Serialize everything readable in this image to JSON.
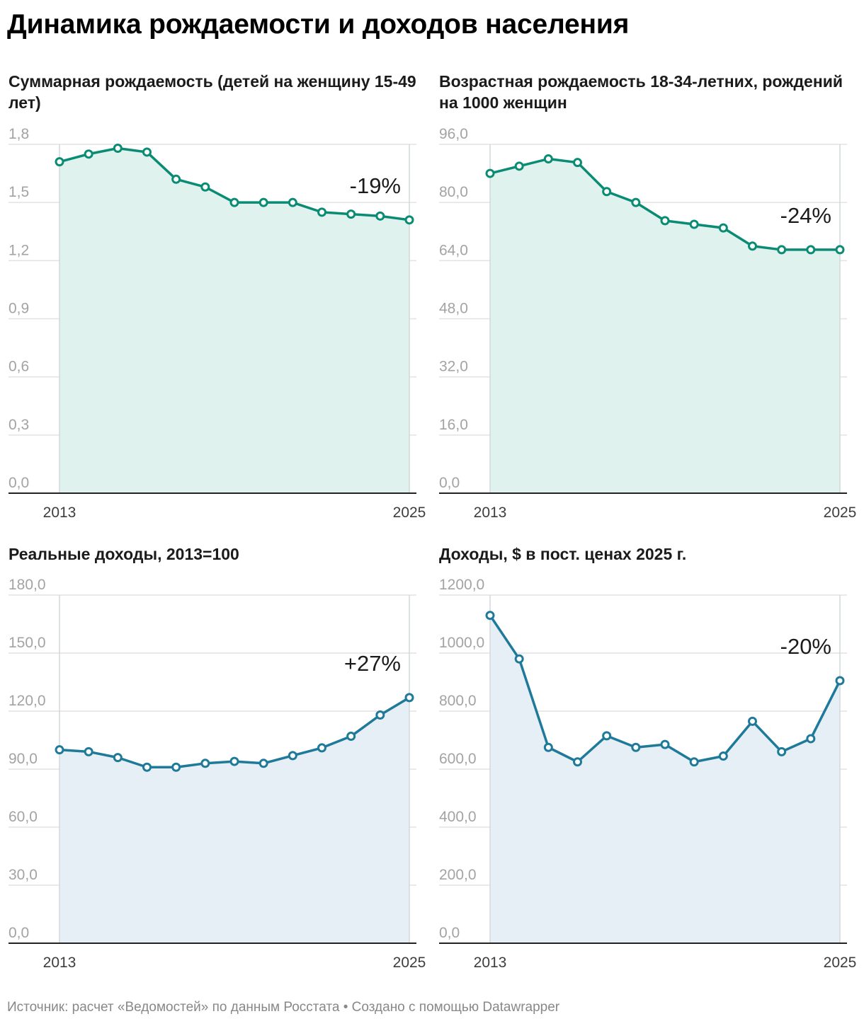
{
  "title": "Динамика рождаемости и доходов населения",
  "footer": "Источник: расчет «Ведомостей» по данным Росстата • Создано с помощью Datawrapper",
  "chart_data": [
    {
      "type": "area",
      "title": "Суммарная рождаемость (детей на женщину 15-49 лет)",
      "x": [
        2013,
        2014,
        2015,
        2016,
        2017,
        2018,
        2019,
        2020,
        2021,
        2022,
        2023,
        2024,
        2025
      ],
      "x_tick_labels": [
        "2013",
        "2025"
      ],
      "y_ticks": [
        "1,8",
        "1,5",
        "1,2",
        "0,9",
        "0,6",
        "0,3",
        "0,0"
      ],
      "ylim": [
        0,
        1.8
      ],
      "values": [
        1.71,
        1.75,
        1.78,
        1.76,
        1.62,
        1.58,
        1.5,
        1.5,
        1.5,
        1.45,
        1.44,
        1.43,
        1.41
      ],
      "annotation": "-19%",
      "color": "#0a8c74",
      "fill": "#e0f2ee"
    },
    {
      "type": "area",
      "title": "Возрастная рождаемость 18-34-летних, рождений на 1000 женщин",
      "x": [
        2013,
        2014,
        2015,
        2016,
        2017,
        2018,
        2019,
        2020,
        2021,
        2022,
        2023,
        2024,
        2025
      ],
      "x_tick_labels": [
        "2013",
        "2025"
      ],
      "y_ticks": [
        "96,0",
        "80,0",
        "64,0",
        "48,0",
        "32,0",
        "16,0",
        "0,0"
      ],
      "ylim": [
        0,
        96
      ],
      "values": [
        88,
        90,
        92,
        91,
        83,
        80,
        75,
        74,
        73,
        68,
        67,
        67,
        67
      ],
      "annotation": "-24%",
      "color": "#0a8c74",
      "fill": "#e0f2ee"
    },
    {
      "type": "area",
      "title": "Реальные доходы, 2013=100",
      "x": [
        2013,
        2014,
        2015,
        2016,
        2017,
        2018,
        2019,
        2020,
        2021,
        2022,
        2023,
        2024,
        2025
      ],
      "x_tick_labels": [
        "2013",
        "2025"
      ],
      "y_ticks": [
        "180,0",
        "150,0",
        "120,0",
        "90,0",
        "60,0",
        "30,0",
        "0,0"
      ],
      "ylim": [
        0,
        180
      ],
      "values": [
        100,
        99,
        96,
        91,
        91,
        93,
        94,
        93,
        97,
        101,
        107,
        118,
        127
      ],
      "annotation": "+27%",
      "color": "#1f7a99",
      "fill": "#e5eff5"
    },
    {
      "type": "area",
      "title": "Доходы, $ в пост. ценах 2025 г.",
      "x": [
        2013,
        2014,
        2015,
        2016,
        2017,
        2018,
        2019,
        2020,
        2021,
        2022,
        2023,
        2024,
        2025
      ],
      "x_tick_labels": [
        "2013",
        "2025"
      ],
      "y_ticks": [
        "1200,0",
        "1000,0",
        "800,0",
        "600,0",
        "400,0",
        "200,0",
        "0,0"
      ],
      "ylim": [
        0,
        1200
      ],
      "values": [
        1130,
        980,
        675,
        625,
        715,
        675,
        685,
        625,
        645,
        765,
        660,
        705,
        905
      ],
      "annotation": "-20%",
      "color": "#1f7a99",
      "fill": "#e5eff5"
    }
  ]
}
